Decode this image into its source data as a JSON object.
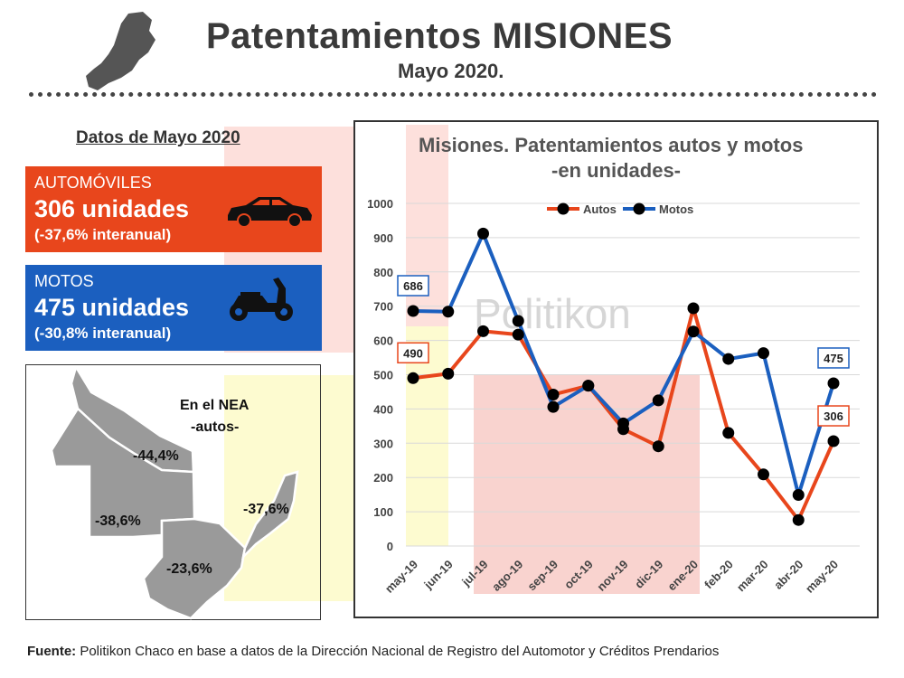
{
  "header": {
    "title": "Patentamientos MISIONES",
    "subtitle": "Mayo 2020."
  },
  "datos": {
    "heading": "Datos de Mayo 2020",
    "autos": {
      "label": "AUTOMÓVILES",
      "units": "306 unidades",
      "change": "(-37,6% interanual)",
      "color": "#e8461c",
      "icon": "car-icon"
    },
    "motos": {
      "label": "MOTOS",
      "units": "475 unidades",
      "change": "(-30,8% interanual)",
      "color": "#1b5fbf",
      "icon": "motorcycle-icon"
    }
  },
  "map": {
    "title": "En el NEA",
    "subtitle": "-autos-",
    "regions": [
      {
        "name": "Formosa",
        "pct": "-44,4%"
      },
      {
        "name": "Chaco",
        "pct": "-38,6%"
      },
      {
        "name": "Corrientes",
        "pct": "-23,6%"
      },
      {
        "name": "Misiones",
        "pct": "-37,6%"
      }
    ]
  },
  "chart_data": {
    "type": "line",
    "title": "Misiones. Patentamientos autos y motos",
    "subtitle": "-en unidades-",
    "watermark": "Politikon",
    "categories": [
      "may-19",
      "jun-19",
      "jul-19",
      "ago-19",
      "sep-19",
      "oct-19",
      "nov-19",
      "dic-19",
      "ene-20",
      "feb-20",
      "mar-20",
      "abr-20",
      "may-20"
    ],
    "series": [
      {
        "name": "Autos",
        "color": "#e8461c",
        "values": [
          490,
          503,
          627,
          617,
          442,
          468,
          341,
          291,
          694,
          330,
          209,
          76,
          306
        ]
      },
      {
        "name": "Motos",
        "color": "#1b5fbf",
        "values": [
          686,
          684,
          912,
          657,
          406,
          468,
          358,
          425,
          626,
          546,
          563,
          149,
          475
        ]
      }
    ],
    "data_labels": [
      {
        "series": "Motos",
        "index": 0,
        "text": "686"
      },
      {
        "series": "Autos",
        "index": 0,
        "text": "490"
      },
      {
        "series": "Motos",
        "index": 12,
        "text": "475"
      },
      {
        "series": "Autos",
        "index": 12,
        "text": "306"
      }
    ],
    "yticks": [
      0,
      100,
      200,
      300,
      400,
      500,
      600,
      700,
      800,
      900,
      1000
    ],
    "ylim": [
      0,
      1000
    ],
    "legend_position": "top",
    "grid": true
  },
  "footer": {
    "source_label": "Fuente:",
    "source_text": " Politikon Chaco en base a datos de la Dirección Nacional de Registro del Automotor y Créditos Prendarios"
  }
}
